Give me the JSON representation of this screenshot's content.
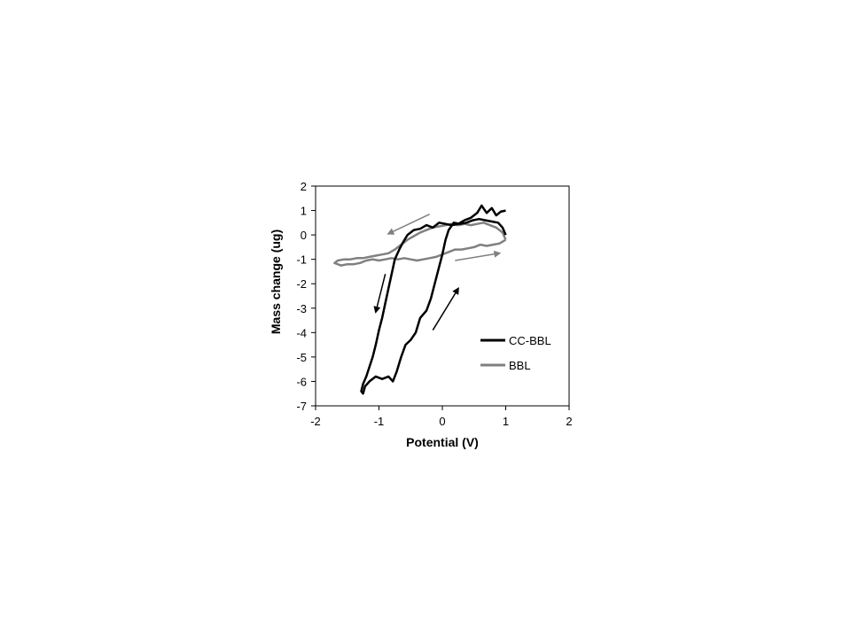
{
  "chart_data": {
    "type": "line",
    "xlabel": "Potential (V)",
    "ylabel": "Mass change (ug)",
    "xlim": [
      -2,
      2
    ],
    "ylim": [
      -7,
      2
    ],
    "xticks": [
      "-2",
      "-1",
      "0",
      "1",
      "2"
    ],
    "yticks": [
      "2",
      "1",
      "0",
      "-1",
      "-2",
      "-3",
      "-4",
      "-5",
      "-6",
      "-7"
    ],
    "grid": false,
    "legend_position": "lower-right",
    "series": [
      {
        "name": "CC-BBL",
        "color": "#000000",
        "points": [
          [
            1.0,
            1.0
          ],
          [
            0.92,
            0.95
          ],
          [
            0.85,
            0.8
          ],
          [
            0.78,
            1.1
          ],
          [
            0.7,
            0.9
          ],
          [
            0.62,
            1.2
          ],
          [
            0.55,
            0.9
          ],
          [
            0.45,
            0.7
          ],
          [
            0.35,
            0.6
          ],
          [
            0.25,
            0.45
          ],
          [
            0.15,
            0.4
          ],
          [
            0.05,
            0.45
          ],
          [
            -0.05,
            0.5
          ],
          [
            -0.15,
            0.3
          ],
          [
            -0.25,
            0.4
          ],
          [
            -0.35,
            0.25
          ],
          [
            -0.45,
            0.2
          ],
          [
            -0.55,
            0.0
          ],
          [
            -0.62,
            -0.3
          ],
          [
            -0.68,
            -0.6
          ],
          [
            -0.75,
            -1.0
          ],
          [
            -0.8,
            -1.6
          ],
          [
            -0.85,
            -2.2
          ],
          [
            -0.9,
            -2.8
          ],
          [
            -0.95,
            -3.4
          ],
          [
            -1.0,
            -3.9
          ],
          [
            -1.05,
            -4.5
          ],
          [
            -1.1,
            -5.0
          ],
          [
            -1.15,
            -5.4
          ],
          [
            -1.2,
            -5.8
          ],
          [
            -1.25,
            -6.1
          ],
          [
            -1.28,
            -6.4
          ],
          [
            -1.25,
            -6.5
          ],
          [
            -1.22,
            -6.2
          ],
          [
            -1.15,
            -6.0
          ],
          [
            -1.05,
            -5.8
          ],
          [
            -0.95,
            -5.9
          ],
          [
            -0.85,
            -5.8
          ],
          [
            -0.78,
            -6.0
          ],
          [
            -0.72,
            -5.6
          ],
          [
            -0.65,
            -5.0
          ],
          [
            -0.58,
            -4.5
          ],
          [
            -0.5,
            -4.3
          ],
          [
            -0.42,
            -4.0
          ],
          [
            -0.35,
            -3.4
          ],
          [
            -0.25,
            -3.1
          ],
          [
            -0.18,
            -2.6
          ],
          [
            -0.12,
            -2.0
          ],
          [
            -0.05,
            -1.3
          ],
          [
            0.0,
            -0.8
          ],
          [
            0.05,
            -0.2
          ],
          [
            0.1,
            0.2
          ],
          [
            0.18,
            0.5
          ],
          [
            0.28,
            0.45
          ],
          [
            0.38,
            0.5
          ],
          [
            0.48,
            0.6
          ],
          [
            0.58,
            0.65
          ],
          [
            0.68,
            0.6
          ],
          [
            0.78,
            0.55
          ],
          [
            0.88,
            0.5
          ],
          [
            0.95,
            0.3
          ],
          [
            1.0,
            0.0
          ]
        ]
      },
      {
        "name": "BBL",
        "color": "#808080",
        "points": [
          [
            1.0,
            -0.2
          ],
          [
            0.9,
            -0.35
          ],
          [
            0.8,
            -0.4
          ],
          [
            0.7,
            -0.45
          ],
          [
            0.6,
            -0.4
          ],
          [
            0.5,
            -0.5
          ],
          [
            0.4,
            -0.55
          ],
          [
            0.3,
            -0.6
          ],
          [
            0.2,
            -0.6
          ],
          [
            0.1,
            -0.7
          ],
          [
            0.0,
            -0.8
          ],
          [
            -0.1,
            -0.9
          ],
          [
            -0.2,
            -0.95
          ],
          [
            -0.3,
            -1.0
          ],
          [
            -0.4,
            -1.05
          ],
          [
            -0.5,
            -1.0
          ],
          [
            -0.6,
            -0.95
          ],
          [
            -0.7,
            -1.0
          ],
          [
            -0.8,
            -0.95
          ],
          [
            -0.9,
            -1.0
          ],
          [
            -1.0,
            -1.05
          ],
          [
            -1.1,
            -1.0
          ],
          [
            -1.2,
            -1.05
          ],
          [
            -1.3,
            -1.15
          ],
          [
            -1.4,
            -1.2
          ],
          [
            -1.5,
            -1.2
          ],
          [
            -1.6,
            -1.25
          ],
          [
            -1.7,
            -1.15
          ],
          [
            -1.65,
            -1.05
          ],
          [
            -1.55,
            -1.0
          ],
          [
            -1.45,
            -1.0
          ],
          [
            -1.35,
            -0.95
          ],
          [
            -1.25,
            -0.95
          ],
          [
            -1.15,
            -0.9
          ],
          [
            -1.05,
            -0.85
          ],
          [
            -0.95,
            -0.8
          ],
          [
            -0.85,
            -0.75
          ],
          [
            -0.75,
            -0.6
          ],
          [
            -0.65,
            -0.4
          ],
          [
            -0.55,
            -0.2
          ],
          [
            -0.45,
            -0.05
          ],
          [
            -0.35,
            0.1
          ],
          [
            -0.25,
            0.2
          ],
          [
            -0.15,
            0.3
          ],
          [
            -0.05,
            0.35
          ],
          [
            0.05,
            0.4
          ],
          [
            0.15,
            0.45
          ],
          [
            0.25,
            0.4
          ],
          [
            0.35,
            0.45
          ],
          [
            0.45,
            0.4
          ],
          [
            0.55,
            0.45
          ],
          [
            0.65,
            0.5
          ],
          [
            0.75,
            0.4
          ],
          [
            0.85,
            0.3
          ],
          [
            0.95,
            0.1
          ],
          [
            1.0,
            -0.2
          ]
        ]
      }
    ],
    "arrows": [
      {
        "color": "#808080",
        "from": [
          -0.2,
          0.85
        ],
        "to": [
          -0.85,
          0.05
        ]
      },
      {
        "color": "#000000",
        "from": [
          -0.9,
          -1.6
        ],
        "to": [
          -1.05,
          -3.15
        ]
      },
      {
        "color": "#808080",
        "from": [
          0.2,
          -1.05
        ],
        "to": [
          0.9,
          -0.75
        ]
      },
      {
        "color": "#000000",
        "from": [
          -0.15,
          -3.9
        ],
        "to": [
          0.25,
          -2.2
        ]
      }
    ]
  }
}
